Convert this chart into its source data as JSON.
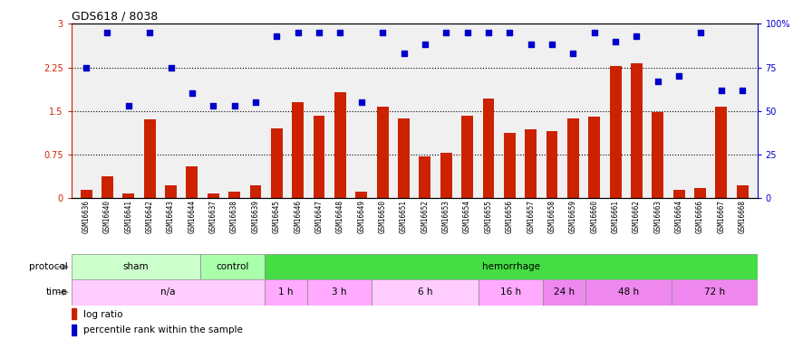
{
  "title": "GDS618 / 8038",
  "samples": [
    "GSM16636",
    "GSM16640",
    "GSM16641",
    "GSM16642",
    "GSM16643",
    "GSM16644",
    "GSM16637",
    "GSM16638",
    "GSM16639",
    "GSM16645",
    "GSM16646",
    "GSM16647",
    "GSM16648",
    "GSM16649",
    "GSM16650",
    "GSM16651",
    "GSM16652",
    "GSM16653",
    "GSM16654",
    "GSM16655",
    "GSM16656",
    "GSM16657",
    "GSM16658",
    "GSM16659",
    "GSM16660",
    "GSM16661",
    "GSM16662",
    "GSM16663",
    "GSM16664",
    "GSM16666",
    "GSM16667",
    "GSM16668"
  ],
  "log_ratio": [
    0.15,
    0.38,
    0.09,
    1.35,
    0.22,
    0.55,
    0.08,
    0.12,
    0.22,
    1.2,
    1.65,
    1.42,
    1.82,
    0.12,
    1.57,
    1.38,
    0.72,
    0.78,
    1.42,
    1.72,
    1.12,
    1.18,
    1.15,
    1.38,
    1.4,
    2.28,
    2.32,
    1.48,
    0.14,
    0.18,
    1.58,
    0.22
  ],
  "percentile": [
    75,
    95,
    53,
    95,
    75,
    60,
    53,
    53,
    55,
    93,
    95,
    95,
    95,
    55,
    95,
    83,
    88,
    95,
    95,
    95,
    95,
    88,
    88,
    83,
    95,
    90,
    93,
    67,
    70,
    95,
    62,
    62
  ],
  "protocol_groups": [
    {
      "label": "sham",
      "start": 0,
      "end": 6,
      "color": "#ccffcc"
    },
    {
      "label": "control",
      "start": 6,
      "end": 9,
      "color": "#aaffaa"
    },
    {
      "label": "hemorrhage",
      "start": 9,
      "end": 32,
      "color": "#44dd44"
    }
  ],
  "time_groups": [
    {
      "label": "n/a",
      "start": 0,
      "end": 9,
      "color": "#ffccff"
    },
    {
      "label": "1 h",
      "start": 9,
      "end": 11,
      "color": "#ffaaff"
    },
    {
      "label": "3 h",
      "start": 11,
      "end": 14,
      "color": "#ffaaff"
    },
    {
      "label": "6 h",
      "start": 14,
      "end": 19,
      "color": "#ffccff"
    },
    {
      "label": "16 h",
      "start": 19,
      "end": 22,
      "color": "#ffaaff"
    },
    {
      "label": "24 h",
      "start": 22,
      "end": 24,
      "color": "#ee88ee"
    },
    {
      "label": "48 h",
      "start": 24,
      "end": 28,
      "color": "#ee88ee"
    },
    {
      "label": "72 h",
      "start": 28,
      "end": 32,
      "color": "#ee88ee"
    }
  ],
  "yticks_left": [
    0,
    0.75,
    1.5,
    2.25,
    3.0
  ],
  "ytick_labels_left": [
    "0",
    "0.75",
    "1.5",
    "2.25",
    "3"
  ],
  "yticks_right": [
    0,
    25,
    50,
    75,
    100
  ],
  "ytick_labels_right": [
    "0",
    "25",
    "50",
    "75",
    "100%"
  ],
  "bar_color": "#cc2200",
  "dot_color": "#0000cc",
  "hline_values": [
    0.75,
    1.5,
    2.25
  ]
}
